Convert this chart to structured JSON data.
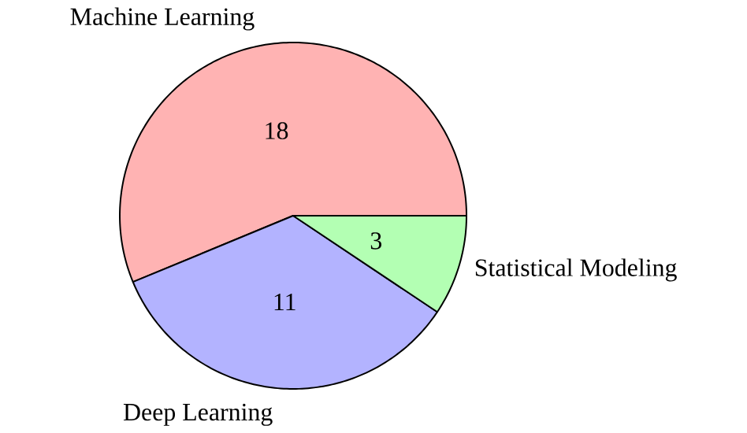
{
  "chart_data": {
    "type": "pie",
    "categories": [
      "Machine Learning",
      "Deep Learning",
      "Statistical Modeling"
    ],
    "values": [
      18,
      11,
      3
    ],
    "colors": [
      "#ffb3b3",
      "#b3b3ff",
      "#b3ffb3"
    ],
    "data_labels": true,
    "legend": false
  }
}
